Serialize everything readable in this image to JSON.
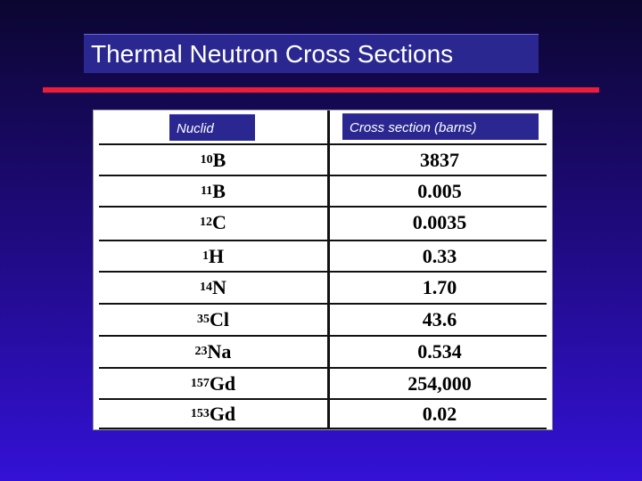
{
  "slide": {
    "title": "Thermal Neutron Cross Sections"
  },
  "table": {
    "headers": {
      "nuclide": "Nuclid",
      "cross_section": "Cross section (barns)"
    },
    "rows": [
      {
        "mass": "10",
        "element": "B",
        "value": "3837"
      },
      {
        "mass": "11",
        "element": "B",
        "value": "0.005"
      },
      {
        "mass": "12",
        "element": "C",
        "value": "0.0035"
      },
      {
        "mass": "1",
        "element": "H",
        "value": "0.33"
      },
      {
        "mass": "14",
        "element": "N",
        "value": "1.70"
      },
      {
        "mass": "35",
        "element": "Cl",
        "value": "43.6"
      },
      {
        "mass": "23",
        "element": "Na",
        "value": "0.534"
      },
      {
        "mass": "157",
        "element": "Gd",
        "value": "254,000"
      },
      {
        "mass": "153",
        "element": "Gd",
        "value": "0.02"
      }
    ]
  },
  "colors": {
    "background_top": "#0b0630",
    "background_bottom": "#3411d6",
    "accent_bar": "#ec1c3a",
    "label_box": "#2a2890"
  }
}
